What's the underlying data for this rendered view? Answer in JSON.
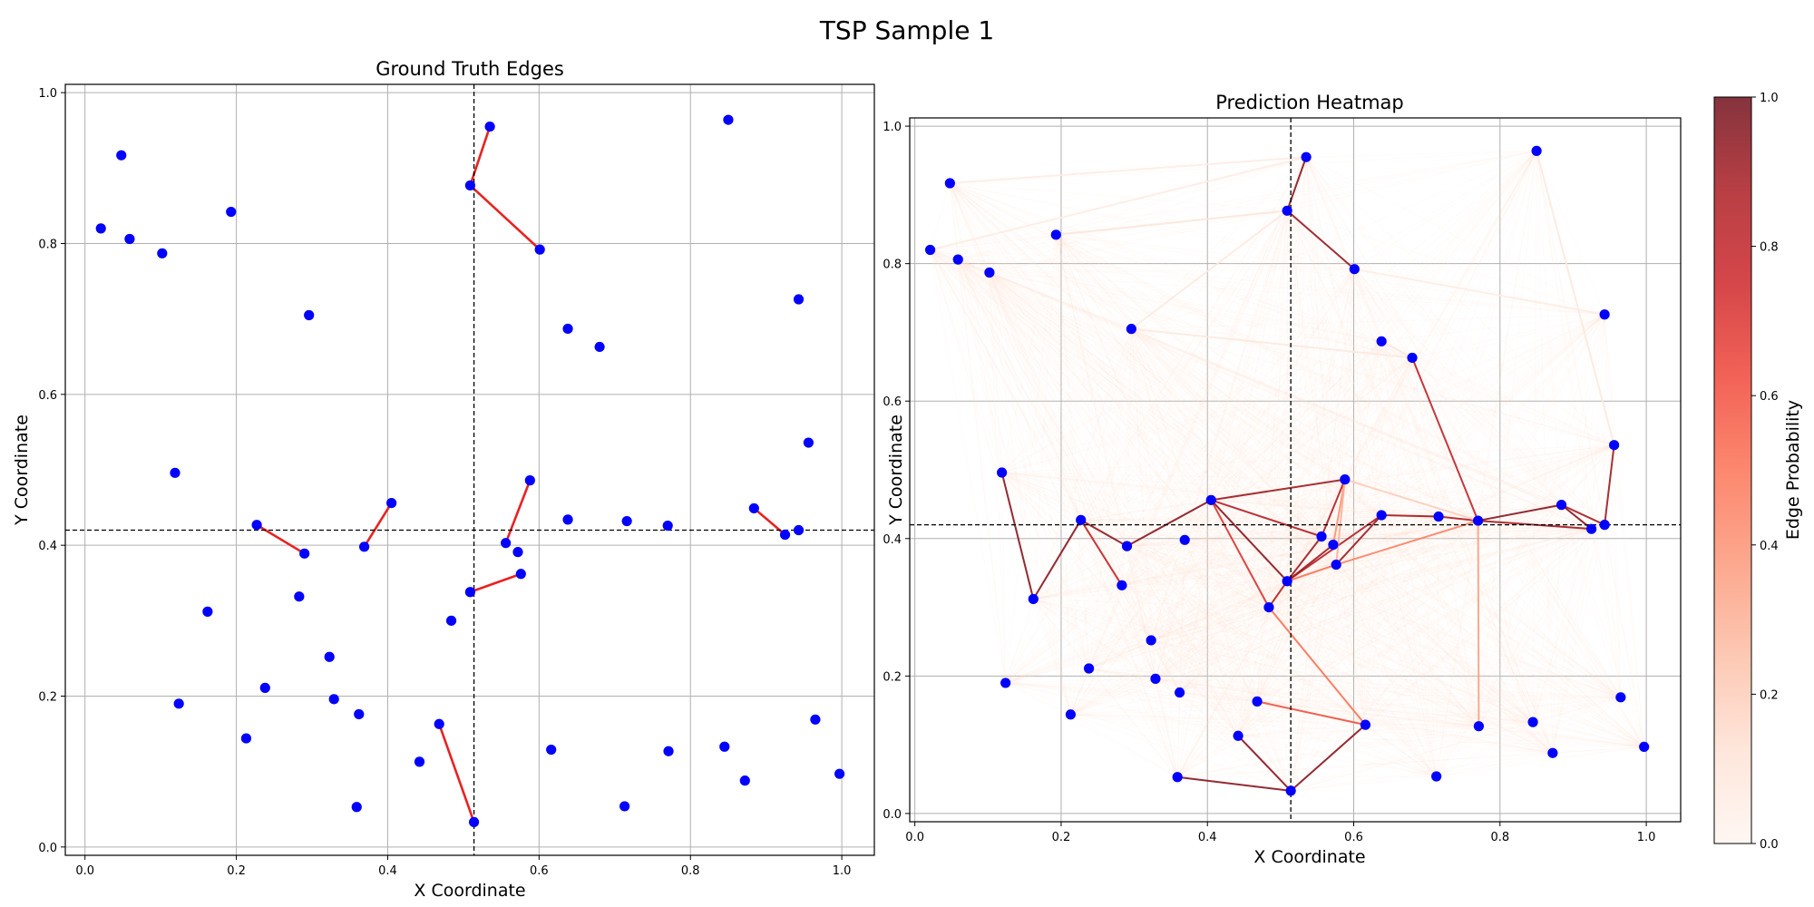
{
  "figure": {
    "suptitle": "TSP Sample 1"
  },
  "nodes": [
    [
      0.021,
      0.82
    ],
    [
      0.048,
      0.917
    ],
    [
      0.059,
      0.806
    ],
    [
      0.102,
      0.787
    ],
    [
      0.119,
      0.496
    ],
    [
      0.124,
      0.19
    ],
    [
      0.162,
      0.312
    ],
    [
      0.193,
      0.842
    ],
    [
      0.213,
      0.144
    ],
    [
      0.227,
      0.427
    ],
    [
      0.238,
      0.211
    ],
    [
      0.283,
      0.332
    ],
    [
      0.29,
      0.389
    ],
    [
      0.296,
      0.705
    ],
    [
      0.323,
      0.252
    ],
    [
      0.329,
      0.196
    ],
    [
      0.359,
      0.053
    ],
    [
      0.362,
      0.176
    ],
    [
      0.369,
      0.398
    ],
    [
      0.405,
      0.456
    ],
    [
      0.442,
      0.113
    ],
    [
      0.468,
      0.163
    ],
    [
      0.484,
      0.3
    ],
    [
      0.509,
      0.338
    ],
    [
      0.509,
      0.877
    ],
    [
      0.514,
      0.033
    ],
    [
      0.535,
      0.955
    ],
    [
      0.556,
      0.403
    ],
    [
      0.572,
      0.391
    ],
    [
      0.576,
      0.362
    ],
    [
      0.588,
      0.486
    ],
    [
      0.601,
      0.792
    ],
    [
      0.616,
      0.129
    ],
    [
      0.638,
      0.434
    ],
    [
      0.638,
      0.687
    ],
    [
      0.68,
      0.663
    ],
    [
      0.713,
      0.054
    ],
    [
      0.716,
      0.432
    ],
    [
      0.77,
      0.426
    ],
    [
      0.771,
      0.127
    ],
    [
      0.845,
      0.133
    ],
    [
      0.85,
      0.964
    ],
    [
      0.872,
      0.088
    ],
    [
      0.884,
      0.449
    ],
    [
      0.925,
      0.414
    ],
    [
      0.943,
      0.726
    ],
    [
      0.943,
      0.42
    ],
    [
      0.956,
      0.536
    ],
    [
      0.965,
      0.169
    ],
    [
      0.997,
      0.097
    ]
  ],
  "chart_data": [
    {
      "type": "scatter",
      "title": "Ground Truth Edges",
      "xlabel": "X Coordinate",
      "ylabel": "Y Coordinate",
      "xlim": [
        -0.026,
        1.043
      ],
      "ylim": [
        -0.011,
        1.011
      ],
      "xticks": [
        0.0,
        0.2,
        0.4,
        0.6,
        0.8,
        1.0
      ],
      "yticks": [
        0.0,
        0.2,
        0.4,
        0.6,
        0.8,
        1.0
      ],
      "tick_labels": [
        "0.0",
        "0.2",
        "0.4",
        "0.6",
        "0.8",
        "1.0"
      ],
      "grid": true,
      "ref_lines": {
        "x": 0.514,
        "y": 0.42
      },
      "edges": [
        [
          24,
          26
        ],
        [
          24,
          31
        ],
        [
          9,
          12
        ],
        [
          18,
          19
        ],
        [
          27,
          30
        ],
        [
          23,
          29
        ],
        [
          21,
          25
        ],
        [
          43,
          44
        ]
      ],
      "edge_color": "#e82222",
      "node_color": "#0000ff"
    },
    {
      "type": "scatter",
      "title": "Prediction Heatmap",
      "xlabel": "X Coordinate",
      "ylabel": "Y Coordinate",
      "xlim": [
        -0.007,
        1.047
      ],
      "ylim": [
        -0.012,
        1.012
      ],
      "xticks": [
        0.0,
        0.2,
        0.4,
        0.6,
        0.8,
        1.0
      ],
      "yticks": [
        0.0,
        0.2,
        0.4,
        0.6,
        0.8,
        1.0
      ],
      "tick_labels": [
        "0.0",
        "0.2",
        "0.4",
        "0.6",
        "0.8",
        "1.0"
      ],
      "grid": true,
      "ref_lines": {
        "x": 0.514,
        "y": 0.42
      },
      "edges": [
        [
          26,
          24,
          0.95
        ],
        [
          24,
          31,
          0.92
        ],
        [
          4,
          6,
          0.95
        ],
        [
          6,
          9,
          0.95
        ],
        [
          9,
          12,
          0.93
        ],
        [
          9,
          11,
          0.8
        ],
        [
          12,
          19,
          0.95
        ],
        [
          19,
          23,
          0.95
        ],
        [
          19,
          27,
          0.85
        ],
        [
          19,
          30,
          0.9
        ],
        [
          19,
          22,
          0.7
        ],
        [
          22,
          23,
          0.85
        ],
        [
          22,
          32,
          0.5
        ],
        [
          23,
          28,
          0.9
        ],
        [
          23,
          27,
          0.9
        ],
        [
          23,
          33,
          0.85
        ],
        [
          23,
          29,
          0.5
        ],
        [
          27,
          30,
          0.85
        ],
        [
          30,
          28,
          0.4
        ],
        [
          29,
          33,
          0.9
        ],
        [
          29,
          38,
          0.45
        ],
        [
          33,
          37,
          0.9
        ],
        [
          37,
          38,
          0.85
        ],
        [
          38,
          35,
          0.8
        ],
        [
          38,
          43,
          0.95
        ],
        [
          38,
          44,
          0.9
        ],
        [
          43,
          44,
          0.95
        ],
        [
          43,
          46,
          0.9
        ],
        [
          46,
          47,
          0.9
        ],
        [
          38,
          39,
          0.35
        ],
        [
          16,
          25,
          0.95
        ],
        [
          25,
          32,
          0.95
        ],
        [
          21,
          32,
          0.6
        ],
        [
          20,
          25,
          0.95
        ],
        [
          30,
          38,
          0.2
        ],
        [
          30,
          29,
          0.3
        ],
        [
          26,
          0,
          0.06
        ],
        [
          13,
          35,
          0.08
        ],
        [
          7,
          24,
          0.1
        ],
        [
          1,
          26,
          0.06
        ],
        [
          13,
          24,
          0.07
        ],
        [
          34,
          35,
          0.1
        ],
        [
          31,
          45,
          0.06
        ],
        [
          41,
          47,
          0.08
        ]
      ],
      "faint_edge_probability": 0.03,
      "colormap": "Reds",
      "colorbar": {
        "label": "Edge Probability",
        "range": [
          0.0,
          1.0
        ],
        "ticks": [
          "0.0",
          "0.2",
          "0.4",
          "0.6",
          "0.8",
          "1.0"
        ]
      },
      "node_color": "#0000ff"
    }
  ]
}
